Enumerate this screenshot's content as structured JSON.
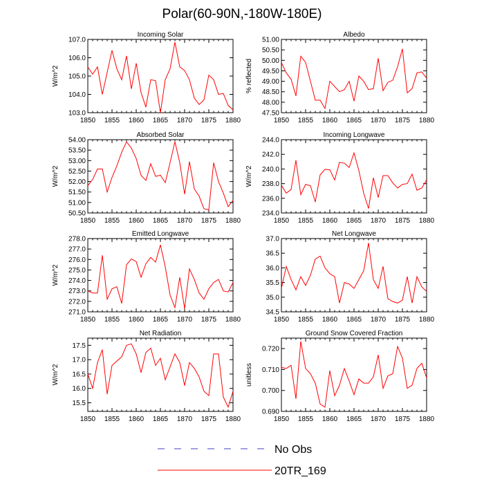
{
  "figure": {
    "title": "Polar(60-90N,-180W-180E)",
    "legend": [
      {
        "label": "No Obs",
        "color": "#4040c0",
        "dash": "dashed"
      },
      {
        "label": "20TR_169",
        "color": "#ff0000",
        "dash": "solid"
      }
    ]
  },
  "chart_data": [
    {
      "type": "line",
      "title": "Incoming Solar",
      "ylabel": "W/m^2",
      "xlim": [
        1850,
        1880
      ],
      "ylim": [
        103.0,
        107.0
      ],
      "xticks": [
        1850,
        1855,
        1860,
        1865,
        1870,
        1875,
        1880
      ],
      "yticks": [
        "103.0",
        "104.0",
        "105.0",
        "106.0",
        "107.0"
      ],
      "series": [
        {
          "name": "20TR_169",
          "color": "#ff0000",
          "x": [
            1850,
            1851,
            1852,
            1853,
            1854,
            1855,
            1856,
            1857,
            1858,
            1859,
            1860,
            1861,
            1862,
            1863,
            1864,
            1865,
            1866,
            1867,
            1868,
            1869,
            1870,
            1871,
            1872,
            1873,
            1874,
            1875,
            1876,
            1877,
            1878,
            1879,
            1880
          ],
          "values": [
            105.5,
            105.1,
            105.5,
            104.0,
            105.2,
            106.4,
            105.4,
            104.8,
            106.1,
            104.3,
            105.7,
            104.1,
            103.3,
            104.8,
            104.75,
            103.0,
            104.8,
            105.4,
            106.85,
            105.5,
            105.3,
            104.8,
            103.8,
            103.45,
            103.7,
            105.05,
            104.8,
            104.0,
            104.05,
            103.4,
            103.15
          ]
        }
      ]
    },
    {
      "type": "line",
      "title": "Albedo",
      "ylabel": "% reflected",
      "xlim": [
        1850,
        1880
      ],
      "ylim": [
        47.5,
        51.0
      ],
      "xticks": [
        1850,
        1855,
        1860,
        1865,
        1870,
        1875,
        1880
      ],
      "yticks": [
        "47.50",
        "48.00",
        "48.50",
        "49.00",
        "49.50",
        "50.00",
        "50.50",
        "51.00"
      ],
      "series": [
        {
          "name": "20TR_169",
          "color": "#ff0000",
          "x": [
            1850,
            1851,
            1852,
            1853,
            1854,
            1855,
            1856,
            1857,
            1858,
            1859,
            1860,
            1861,
            1862,
            1863,
            1864,
            1865,
            1866,
            1867,
            1868,
            1869,
            1870,
            1871,
            1872,
            1873,
            1874,
            1875,
            1876,
            1877,
            1878,
            1879,
            1880
          ],
          "values": [
            49.9,
            49.4,
            49.1,
            48.3,
            50.2,
            49.9,
            49.0,
            48.1,
            48.1,
            47.7,
            49.0,
            48.75,
            48.5,
            48.6,
            49.0,
            48.05,
            49.25,
            49.0,
            48.6,
            48.65,
            50.1,
            48.55,
            48.95,
            49.05,
            49.7,
            50.55,
            48.45,
            48.65,
            49.4,
            49.45,
            49.15
          ]
        }
      ]
    },
    {
      "type": "line",
      "title": "Absorbed Solar",
      "ylabel": "W/m^2",
      "xlim": [
        1850,
        1880
      ],
      "ylim": [
        50.5,
        54.0
      ],
      "xticks": [
        1850,
        1855,
        1860,
        1865,
        1870,
        1875,
        1880
      ],
      "yticks": [
        "50.50",
        "51.00",
        "51.50",
        "52.00",
        "52.50",
        "53.00",
        "53.50",
        "54.00"
      ],
      "series": [
        {
          "name": "20TR_169",
          "color": "#ff0000",
          "x": [
            1850,
            1851,
            1852,
            1853,
            1854,
            1855,
            1856,
            1857,
            1858,
            1859,
            1860,
            1861,
            1862,
            1863,
            1864,
            1865,
            1866,
            1867,
            1868,
            1869,
            1870,
            1871,
            1872,
            1873,
            1874,
            1875,
            1876,
            1877,
            1878,
            1879,
            1880
          ],
          "values": [
            51.8,
            52.1,
            52.6,
            52.6,
            51.5,
            52.2,
            52.75,
            53.4,
            53.9,
            53.6,
            53.1,
            52.3,
            52.05,
            52.85,
            52.25,
            52.3,
            51.95,
            52.9,
            53.9,
            52.9,
            51.4,
            52.95,
            51.65,
            51.3,
            50.7,
            50.65,
            52.9,
            52.0,
            51.45,
            50.8,
            51.1
          ]
        }
      ]
    },
    {
      "type": "line",
      "title": "Incoming Longwave",
      "ylabel": "W/m^2",
      "xlim": [
        1850,
        1880
      ],
      "ylim": [
        234.0,
        244.0
      ],
      "xticks": [
        1850,
        1855,
        1860,
        1865,
        1870,
        1875,
        1880
      ],
      "yticks": [
        "234.0",
        "236.0",
        "238.0",
        "240.0",
        "242.0",
        "244.0"
      ],
      "series": [
        {
          "name": "20TR_169",
          "color": "#ff0000",
          "x": [
            1850,
            1851,
            1852,
            1853,
            1854,
            1855,
            1856,
            1857,
            1858,
            1859,
            1860,
            1861,
            1862,
            1863,
            1864,
            1865,
            1866,
            1867,
            1868,
            1869,
            1870,
            1871,
            1872,
            1873,
            1874,
            1875,
            1876,
            1877,
            1878,
            1879,
            1880
          ],
          "values": [
            237.8,
            236.7,
            237.2,
            241.2,
            236.5,
            237.9,
            237.7,
            235.5,
            239.2,
            239.95,
            239.9,
            238.5,
            240.9,
            240.8,
            240.2,
            242.2,
            239.8,
            236.7,
            234.6,
            238.8,
            236.1,
            239.1,
            239.1,
            238.1,
            237.4,
            237.9,
            238.0,
            239.3,
            237.1,
            237.4,
            238.5
          ]
        }
      ]
    },
    {
      "type": "line",
      "title": "Emitted Longwave",
      "ylabel": "W/m^2",
      "xlim": [
        1850,
        1880
      ],
      "ylim": [
        271.0,
        278.0
      ],
      "xticks": [
        1850,
        1855,
        1860,
        1865,
        1870,
        1875,
        1880
      ],
      "yticks": [
        "271.0",
        "272.0",
        "273.0",
        "274.0",
        "275.0",
        "276.0",
        "277.0",
        "278.0"
      ],
      "series": [
        {
          "name": "20TR_169",
          "color": "#ff0000",
          "x": [
            1850,
            1851,
            1852,
            1853,
            1854,
            1855,
            1856,
            1857,
            1858,
            1859,
            1860,
            1861,
            1862,
            1863,
            1864,
            1865,
            1866,
            1867,
            1868,
            1869,
            1870,
            1871,
            1872,
            1873,
            1874,
            1875,
            1876,
            1877,
            1878,
            1879,
            1880
          ],
          "values": [
            273.0,
            272.8,
            272.8,
            276.4,
            272.2,
            273.2,
            273.4,
            271.8,
            275.5,
            276.05,
            275.8,
            274.3,
            275.6,
            276.2,
            275.75,
            277.4,
            275.3,
            272.6,
            271.4,
            274.3,
            271.3,
            275.1,
            274.1,
            272.8,
            272.2,
            273.2,
            273.8,
            274.1,
            273.0,
            272.9,
            273.8
          ]
        }
      ]
    },
    {
      "type": "line",
      "title": "Net Longwave",
      "ylabel": "",
      "xlim": [
        1850,
        1880
      ],
      "ylim": [
        34.5,
        37.0
      ],
      "xticks": [
        1850,
        1855,
        1860,
        1865,
        1870,
        1875,
        1880
      ],
      "yticks": [
        "34.5",
        "35.0",
        "35.5",
        "36.0",
        "36.5",
        "37.0"
      ],
      "series": [
        {
          "name": "20TR_169",
          "color": "#ff0000",
          "x": [
            1850,
            1851,
            1852,
            1853,
            1854,
            1855,
            1856,
            1857,
            1858,
            1859,
            1860,
            1861,
            1862,
            1863,
            1864,
            1865,
            1866,
            1867,
            1868,
            1869,
            1870,
            1871,
            1872,
            1873,
            1874,
            1875,
            1876,
            1877,
            1878,
            1879,
            1880
          ],
          "values": [
            35.3,
            36.05,
            35.6,
            35.25,
            35.7,
            35.4,
            35.75,
            36.3,
            36.4,
            36.0,
            35.8,
            35.7,
            34.8,
            35.5,
            35.45,
            35.3,
            35.6,
            35.9,
            36.85,
            35.6,
            35.3,
            36.05,
            34.95,
            34.85,
            34.8,
            34.9,
            35.7,
            34.8,
            35.7,
            35.35,
            35.2
          ]
        }
      ]
    },
    {
      "type": "line",
      "title": "Net Radiation",
      "ylabel": "W/m^2",
      "xlim": [
        1850,
        1880
      ],
      "ylim": [
        15.2,
        17.75
      ],
      "xticks": [
        1850,
        1855,
        1860,
        1865,
        1870,
        1875,
        1880
      ],
      "yticks": [
        "15.5",
        "16.0",
        "16.5",
        "17.0",
        "17.5"
      ],
      "series": [
        {
          "name": "20TR_169",
          "color": "#ff0000",
          "x": [
            1850,
            1851,
            1852,
            1853,
            1854,
            1855,
            1856,
            1857,
            1858,
            1859,
            1860,
            1861,
            1862,
            1863,
            1864,
            1865,
            1866,
            1867,
            1868,
            1869,
            1870,
            1871,
            1872,
            1873,
            1874,
            1875,
            1876,
            1877,
            1878,
            1879,
            1880
          ],
          "values": [
            16.5,
            16.0,
            16.9,
            17.35,
            15.8,
            16.8,
            16.95,
            17.1,
            17.5,
            17.55,
            17.2,
            16.55,
            17.25,
            17.4,
            16.8,
            17.05,
            16.3,
            16.75,
            17.2,
            16.9,
            16.1,
            16.9,
            16.7,
            16.4,
            15.9,
            15.75,
            17.2,
            17.2,
            15.7,
            15.35,
            15.9
          ]
        }
      ]
    },
    {
      "type": "line",
      "title": "Ground Snow Covered Fraction",
      "ylabel": "unitless",
      "xlim": [
        1850,
        1880
      ],
      "ylim": [
        0.69,
        0.725
      ],
      "xticks": [
        1850,
        1855,
        1860,
        1865,
        1870,
        1875,
        1880
      ],
      "yticks": [
        "0.690",
        "0.700",
        "0.710",
        "0.720"
      ],
      "series": [
        {
          "name": "20TR_169",
          "color": "#ff0000",
          "x": [
            1850,
            1851,
            1852,
            1853,
            1854,
            1855,
            1856,
            1857,
            1858,
            1859,
            1860,
            1861,
            1862,
            1863,
            1864,
            1865,
            1866,
            1867,
            1868,
            1869,
            1870,
            1871,
            1872,
            1873,
            1874,
            1875,
            1876,
            1877,
            1878,
            1879,
            1880
          ],
          "values": [
            0.711,
            0.7105,
            0.712,
            0.696,
            0.7235,
            0.7105,
            0.708,
            0.7035,
            0.6935,
            0.692,
            0.7095,
            0.6975,
            0.7025,
            0.7105,
            0.7045,
            0.698,
            0.7055,
            0.7035,
            0.7035,
            0.7065,
            0.717,
            0.701,
            0.707,
            0.708,
            0.721,
            0.7155,
            0.701,
            0.7025,
            0.7105,
            0.713,
            0.706
          ]
        }
      ]
    }
  ]
}
